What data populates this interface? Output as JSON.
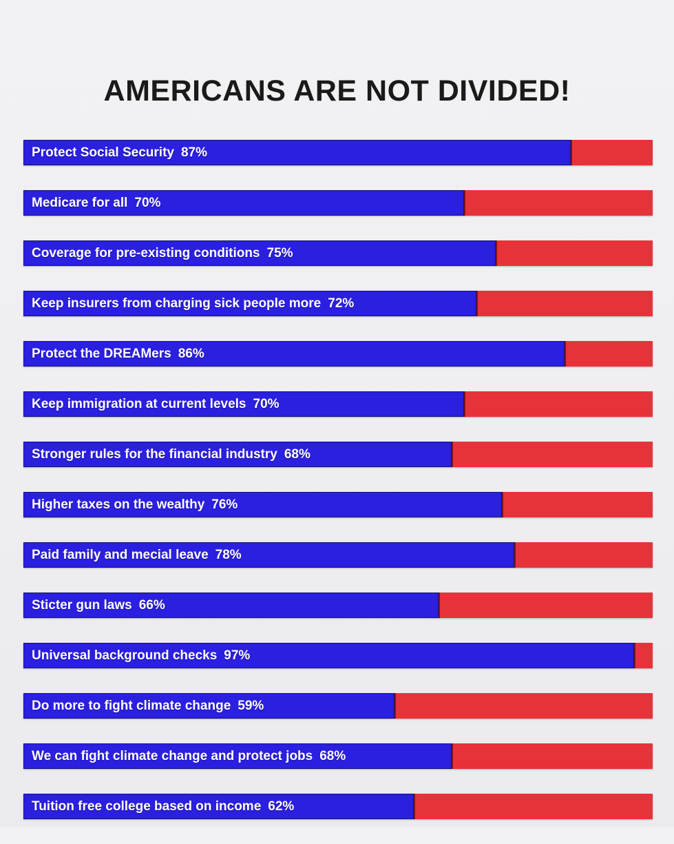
{
  "chart_data": {
    "type": "bar",
    "orientation": "horizontal",
    "stacked": true,
    "title": "AMERICANS ARE NOT DIVIDED!",
    "categories": [
      "Protect Social Security",
      "Medicare for all",
      "Coverage for pre-existing conditions",
      "Keep insurers from charging sick people more",
      "Protect the DREAMers",
      "Keep immigration at current levels",
      "Stronger rules for the financial industry",
      "Higher taxes on the wealthy",
      "Paid family and mecial leave",
      "Sticter gun laws",
      "Universal background checks",
      "Do more to fight climate change",
      "We can fight climate change and protect jobs",
      "Tuition free college based on income"
    ],
    "values": [
      87,
      70,
      75,
      72,
      86,
      70,
      68,
      76,
      78,
      66,
      97,
      59,
      68,
      62
    ],
    "value_labels": [
      "87%",
      "70%",
      "75%",
      "72%",
      "86%",
      "70%",
      "68%",
      "76%",
      "78%",
      "66%",
      "97%",
      "59%",
      "68%",
      "62%"
    ],
    "xlim": [
      0,
      100
    ],
    "xlabel": "",
    "ylabel": "",
    "grid": false,
    "legend": "none",
    "colors": {
      "support": "#2b1fe0",
      "oppose": "#e8323a"
    }
  }
}
